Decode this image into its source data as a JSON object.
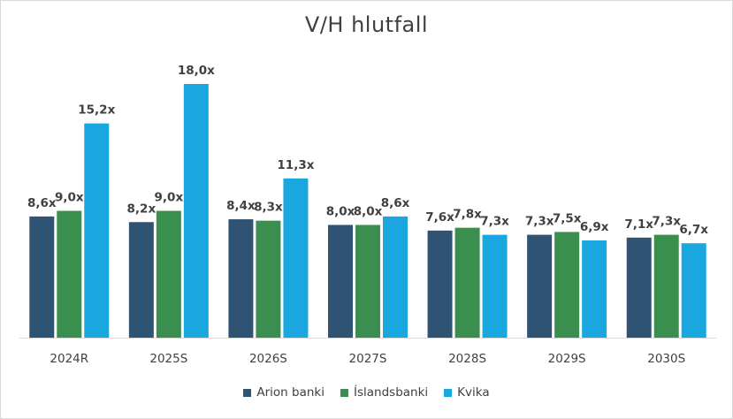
{
  "chart_data": {
    "type": "bar",
    "title": "V/H hlutfall",
    "xlabel": "",
    "ylabel": "",
    "categories": [
      "2024R",
      "2025S",
      "2026S",
      "2027S",
      "2028S",
      "2029S",
      "2030S"
    ],
    "series": [
      {
        "name": "Arion banki",
        "color": "#2E5373",
        "values": [
          8.6,
          8.2,
          8.4,
          8.0,
          7.6,
          7.3,
          7.1
        ],
        "labels": [
          "8,6x",
          "8,2x",
          "8,4x",
          "8,0x",
          "7,6x",
          "7,3x",
          "7,1x"
        ]
      },
      {
        "name": "Íslandsbanki",
        "color": "#3A8E4E",
        "values": [
          9.0,
          9.0,
          8.3,
          8.0,
          7.8,
          7.5,
          7.3
        ],
        "labels": [
          "9,0x",
          "9,0x",
          "8,3x",
          "8,0x",
          "7,8x",
          "7,5x",
          "7,3x"
        ]
      },
      {
        "name": "Kvika",
        "color": "#1AA7E0",
        "values": [
          15.2,
          18.0,
          11.3,
          8.6,
          7.3,
          6.9,
          6.7
        ],
        "labels": [
          "15,2x",
          "18,0x",
          "11,3x",
          "8,6x",
          "7,3x",
          "6,9x",
          "6,7x"
        ]
      }
    ],
    "ylim": [
      0,
      18.0
    ],
    "grid": false,
    "legend_position": "bottom"
  }
}
